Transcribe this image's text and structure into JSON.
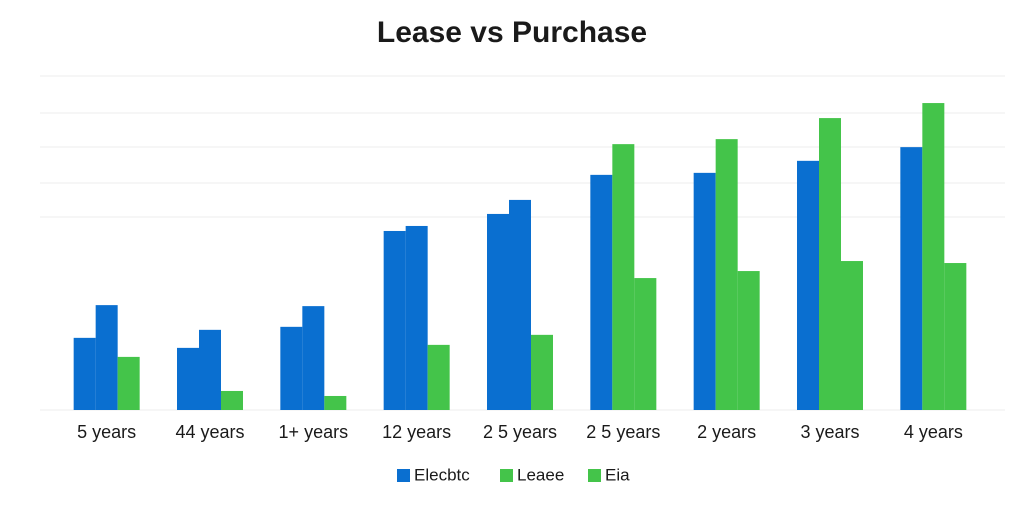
{
  "chart_data": {
    "type": "bar",
    "title": "Lease vs Purchase",
    "categories": [
      "5 years",
      "44 years",
      "1+ years",
      "12 years",
      "2 5 years",
      "2 5 years",
      "2 years",
      "3 years",
      "4 years"
    ],
    "ylim": [
      0,
      100
    ],
    "series": [
      {
        "name": "Elecbtc",
        "color": "#0a6fd0",
        "values": [
          21.6,
          18.6,
          24.9,
          53.6,
          58.7,
          70.4,
          71.0,
          74.6,
          78.7
        ]
      },
      {
        "name": "Leaee",
        "color": "#44c44a",
        "colors": [
          "#0a6fd0",
          "#0a6fd0",
          "#0a6fd0",
          "#0a6fd0",
          "#0a6fd0",
          "#44c44a",
          "#44c44a",
          "#44c44a",
          "#44c44a"
        ],
        "values": [
          31.4,
          24.0,
          31.1,
          55.1,
          62.9,
          79.6,
          81.1,
          87.4,
          91.9
        ]
      },
      {
        "name": "Eia",
        "color": "#44c44a",
        "values": [
          15.9,
          5.7,
          4.2,
          19.5,
          22.5,
          39.5,
          41.6,
          44.6,
          44.0
        ]
      }
    ]
  }
}
